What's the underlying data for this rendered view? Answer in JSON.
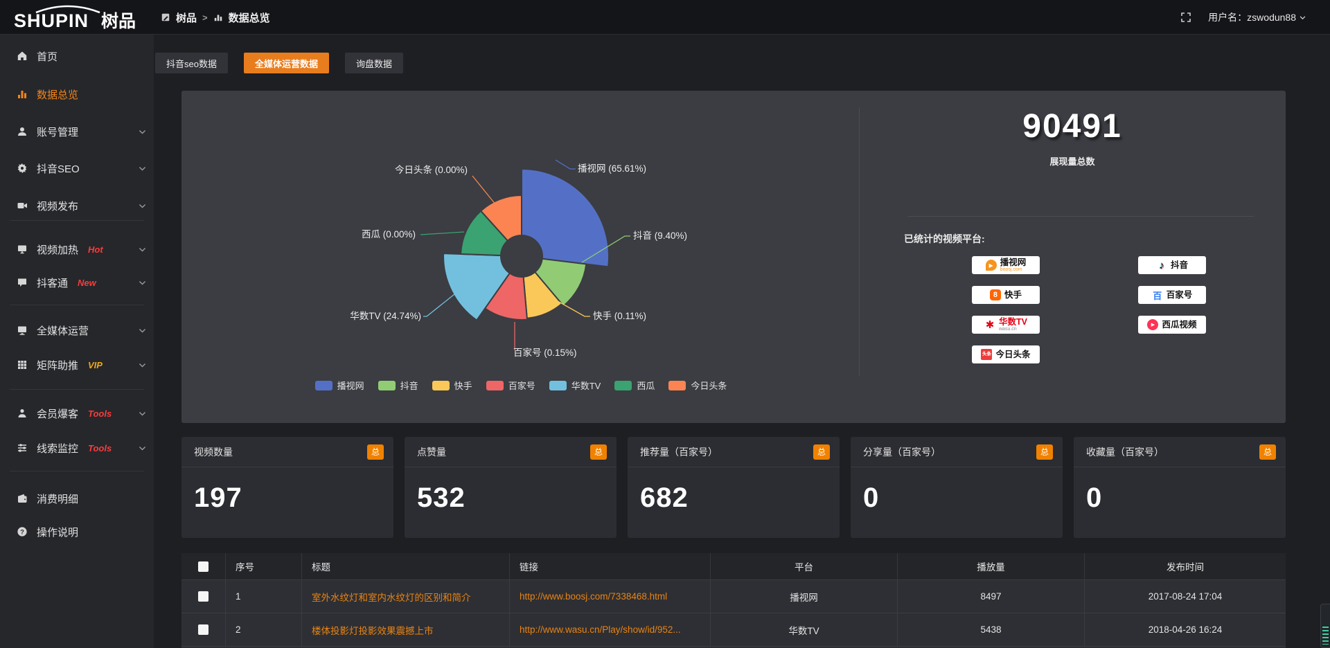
{
  "colors": {
    "accent_orange": "#e87d1e",
    "badge_orange": "#f08200",
    "link_orange": "#e98413",
    "sidebar_active": "#f28519",
    "hot_red": "#fb3b3b",
    "vip_yellow": "#f0a818",
    "panel_bg": "#3b3d42"
  },
  "topbar": {
    "logo_en": "SHUPIN",
    "logo_cn": "树品",
    "breadcrumb": [
      {
        "label": "树品"
      },
      {
        "label": "数据总览"
      }
    ],
    "username": "用户名：zswodun88"
  },
  "sidebar": {
    "items": [
      {
        "label": "首页"
      },
      {
        "label": "数据总览"
      },
      {
        "label": "账号管理"
      },
      {
        "label": "抖音SEO"
      },
      {
        "label": "视频发布"
      },
      {
        "label": "视频加热",
        "badge": "Hot"
      },
      {
        "label": "抖客通",
        "badge": "New"
      },
      {
        "label": "全媒体运营"
      },
      {
        "label": "矩阵助推",
        "badge": "VIP"
      },
      {
        "label": "会员爆客",
        "badge": "Tools"
      },
      {
        "label": "线索监控",
        "badge": "Tools"
      },
      {
        "label": "消费明细"
      },
      {
        "label": "操作说明"
      }
    ]
  },
  "tabs": [
    {
      "label": "抖音seo数据",
      "active": false
    },
    {
      "label": "全媒体运营数据",
      "active": true
    },
    {
      "label": "询盘数据",
      "active": false
    }
  ],
  "chart_data": {
    "type": "pie",
    "variant": "nightingale-rose-donut",
    "categories": [
      "播视网",
      "抖音",
      "快手",
      "百家号",
      "华数TV",
      "西瓜",
      "今日头条"
    ],
    "values": [
      65.61,
      9.4,
      0.11,
      0.15,
      24.74,
      0.0,
      0.0
    ],
    "unit": "%",
    "labels": [
      "播视网 (65.61%)",
      "抖音 (9.40%)",
      "快手 (0.11%)",
      "百家号 (0.15%)",
      "华数TV (24.74%)",
      "西瓜 (0.00%)",
      "今日头条 (0.00%)"
    ],
    "colors": [
      "#5470c6",
      "#91cc75",
      "#fac858",
      "#ee6666",
      "#73c0de",
      "#3ba272",
      "#fc8452"
    ],
    "legend": [
      "播视网",
      "抖音",
      "快手",
      "百家号",
      "华数TV",
      "西瓜",
      "今日头条"
    ],
    "legend_position": "bottom",
    "slice_geometry": {
      "inner_radius": 30,
      "slices": [
        {
          "start_deg": 0,
          "end_deg": 97,
          "radius": 126
        },
        {
          "start_deg": 97,
          "end_deg": 140,
          "radius": 94
        },
        {
          "start_deg": 140,
          "end_deg": 175,
          "radius": 90
        },
        {
          "start_deg": 175,
          "end_deg": 215,
          "radius": 92
        },
        {
          "start_deg": 215,
          "end_deg": 272,
          "radius": 113
        },
        {
          "start_deg": 272,
          "end_deg": 318,
          "radius": 88
        },
        {
          "start_deg": 318,
          "end_deg": 360,
          "radius": 88
        }
      ]
    }
  },
  "summary": {
    "total": "90491",
    "total_label": "展现量总数",
    "platforms_title": "已统计的视频平台:",
    "platforms": [
      {
        "name": "播视网",
        "sub": "boosj.com"
      },
      {
        "name": "抖音"
      },
      {
        "name": "快手"
      },
      {
        "name": "百家号"
      },
      {
        "name": "华数TV",
        "sub": "wasu.cn"
      },
      {
        "name": "西瓜视频"
      },
      {
        "name": "今日头条"
      }
    ]
  },
  "stat_cards": [
    {
      "title": "视频数量",
      "badge": "总",
      "value": "197"
    },
    {
      "title": "点赞量",
      "badge": "总",
      "value": "532"
    },
    {
      "title": "推荐量（百家号）",
      "badge": "总",
      "value": "682"
    },
    {
      "title": "分享量（百家号）",
      "badge": "总",
      "value": "0"
    },
    {
      "title": "收藏量（百家号）",
      "badge": "总",
      "value": "0"
    }
  ],
  "table": {
    "headers": [
      "序号",
      "标题",
      "链接",
      "平台",
      "播放量",
      "发布时间"
    ],
    "rows": [
      {
        "no": "1",
        "title": "室外水纹灯和室内水纹灯的区别和简介",
        "link": "http://www.boosj.com/7338468.html",
        "platform": "播视网",
        "plays": "8497",
        "time": "2017-08-24 17:04"
      },
      {
        "no": "2",
        "title": "楼体投影灯投影效果震撼上市",
        "link": "http://www.wasu.cn/Play/show/id/952...",
        "platform": "华数TV",
        "plays": "5438",
        "time": "2018-04-26 16:24"
      }
    ]
  }
}
